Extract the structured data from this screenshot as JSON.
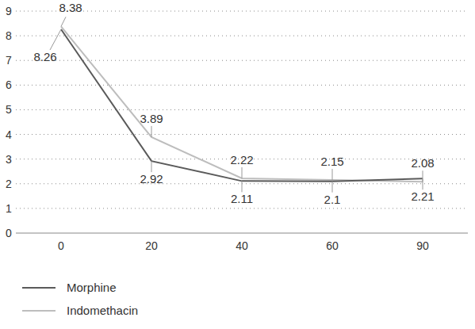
{
  "chart_data": {
    "type": "line",
    "categories": [
      "0",
      "20",
      "40",
      "60",
      "90"
    ],
    "series": [
      {
        "name": "Morphine",
        "color": "#5a5a5a",
        "values": [
          8.26,
          2.92,
          2.11,
          2.1,
          2.21
        ]
      },
      {
        "name": "Indomethacin",
        "color": "#bdbdbd",
        "values": [
          8.38,
          3.89,
          2.22,
          2.15,
          2.08
        ]
      }
    ],
    "ylim": [
      0,
      9
    ],
    "yticks": [
      0,
      1,
      2,
      3,
      4,
      5,
      6,
      7,
      8,
      9
    ],
    "grid": true,
    "legend": "bottom",
    "data_labels": true
  }
}
